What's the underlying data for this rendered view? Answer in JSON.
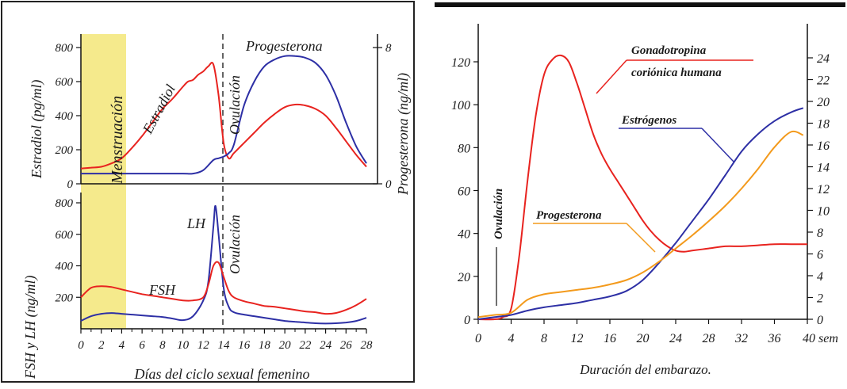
{
  "left_panel": {
    "top": {
      "yleft_label": "Estradiol (pg/ml)",
      "yleft_ticks": [
        "800",
        "600",
        "400",
        "200",
        "0"
      ],
      "yright_label": "Progesterona (ng/ml)",
      "yright_ticks": [
        "8",
        "0"
      ],
      "annotations": {
        "estradiol": "Estradiol",
        "progesterona": "Progesterona",
        "ovulacion": "Ovulación",
        "menstruacion": "Menstruación"
      }
    },
    "bottom": {
      "yleft_label": "FSH y LH (ng/ml)",
      "yleft_ticks": [
        "800",
        "600",
        "400",
        "200"
      ],
      "annotations": {
        "lh": "LH",
        "fsh": "FSH",
        "ovulacion": "Ovulación"
      }
    },
    "x_ticks": [
      "0",
      "2",
      "4",
      "6",
      "8",
      "10",
      "12",
      "14",
      "16",
      "18",
      "20",
      "22",
      "24",
      "26",
      "28"
    ],
    "x_label": "Días del ciclo sexual femenino"
  },
  "right_panel": {
    "yleft_ticks": [
      "120",
      "100",
      "80",
      "60",
      "40",
      "20",
      "0"
    ],
    "yright_ticks": [
      "24",
      "22",
      "20",
      "18",
      "16",
      "14",
      "12",
      "10",
      "8",
      "6",
      "4",
      "2",
      "0"
    ],
    "x_ticks": [
      "0",
      "4",
      "8",
      "12",
      "16",
      "20",
      "24",
      "28",
      "32",
      "36",
      "40 sem"
    ],
    "x_label": "Duración del embarazo.",
    "annotations": {
      "hcg_line1": "Gonadotropina",
      "hcg_line2": "coriónica humana",
      "estrogenos": "Estrógenos",
      "progesterona": "Progesterona",
      "ovulacion": "Ovulación"
    }
  },
  "colors": {
    "red": "#e8231f",
    "blue": "#2d2fa5",
    "orange": "#f39a1c",
    "menstruation_band": "#f5ea8c"
  },
  "chart_data": [
    {
      "type": "line",
      "xlabel": "Días del ciclo sexual femenino",
      "ylabel": "Estradiol (pg/ml)",
      "y2label": "Progesterona (ng/ml)",
      "xlim": [
        0,
        28
      ],
      "ylim": [
        0,
        800
      ],
      "y2lim": [
        0,
        8
      ],
      "series": [
        {
          "name": "Estradiol",
          "axis": "left",
          "x": [
            0,
            1,
            2,
            3,
            4,
            5,
            6,
            7,
            8,
            9,
            10,
            10.5,
            11,
            11.5,
            12,
            12.5,
            13,
            13.5,
            14,
            14.5,
            15,
            16,
            17,
            18,
            19,
            20,
            21,
            22,
            23,
            24,
            25,
            26,
            27,
            28
          ],
          "y": [
            90,
            95,
            100,
            120,
            150,
            210,
            280,
            360,
            440,
            500,
            570,
            600,
            610,
            640,
            660,
            690,
            700,
            520,
            240,
            150,
            180,
            240,
            300,
            360,
            410,
            450,
            465,
            460,
            440,
            400,
            330,
            250,
            170,
            100
          ]
        },
        {
          "name": "Progesterona",
          "axis": "right",
          "x": [
            0,
            2,
            4,
            6,
            8,
            10,
            11,
            12,
            13,
            13.5,
            14,
            14.5,
            15,
            16,
            17,
            18,
            19,
            20,
            21,
            22,
            23,
            24,
            25,
            26,
            27,
            28
          ],
          "y": [
            0.6,
            0.6,
            0.6,
            0.6,
            0.6,
            0.6,
            0.6,
            0.8,
            1.4,
            1.5,
            1.6,
            1.8,
            2.3,
            4.6,
            6.0,
            6.9,
            7.3,
            7.5,
            7.5,
            7.4,
            7.1,
            6.4,
            5.2,
            3.6,
            2.2,
            1.2
          ]
        }
      ]
    },
    {
      "type": "line",
      "xlabel": "Días del ciclo sexual femenino",
      "ylabel": "FSH y LH (ng/ml)",
      "xlim": [
        0,
        28
      ],
      "ylim": [
        0,
        800
      ],
      "series": [
        {
          "name": "LH",
          "x": [
            0,
            1,
            2,
            3,
            4,
            5,
            6,
            7,
            8,
            9,
            10,
            11,
            12,
            12.5,
            13,
            13.2,
            13.5,
            14,
            14.5,
            15,
            16,
            17,
            18,
            19,
            20,
            21,
            22,
            23,
            24,
            25,
            26,
            27,
            28
          ],
          "y": [
            50,
            80,
            95,
            100,
            95,
            90,
            85,
            80,
            75,
            65,
            55,
            80,
            180,
            300,
            650,
            780,
            600,
            260,
            140,
            105,
            90,
            80,
            70,
            60,
            50,
            45,
            40,
            35,
            33,
            35,
            40,
            50,
            70
          ]
        },
        {
          "name": "FSH",
          "x": [
            0,
            1,
            2,
            3,
            4,
            5,
            6,
            7,
            8,
            9,
            10,
            11,
            12,
            12.5,
            13,
            13.5,
            14,
            14.5,
            15,
            16,
            17,
            18,
            19,
            20,
            21,
            22,
            23,
            24,
            25,
            26,
            27,
            28
          ],
          "y": [
            200,
            260,
            270,
            265,
            250,
            235,
            220,
            210,
            200,
            190,
            180,
            180,
            200,
            280,
            400,
            420,
            330,
            240,
            200,
            175,
            160,
            145,
            140,
            130,
            120,
            110,
            105,
            95,
            100,
            120,
            150,
            190
          ]
        }
      ]
    },
    {
      "type": "line",
      "xlabel": "Duración del embarazo.",
      "xlim": [
        0,
        40
      ],
      "ylim": [
        0,
        120
      ],
      "y2lim": [
        0,
        24
      ],
      "series": [
        {
          "name": "Gonadotropina coriónica humana",
          "axis": "left",
          "x": [
            0,
            2,
            3,
            4,
            5,
            6,
            7,
            8,
            9,
            10,
            11,
            12,
            13,
            14,
            15,
            16,
            17,
            18,
            19,
            20,
            21,
            22,
            23,
            24,
            25,
            26,
            28,
            30,
            32,
            34,
            36,
            38,
            40
          ],
          "y": [
            0,
            0,
            1,
            5,
            30,
            65,
            95,
            114,
            121,
            123,
            120,
            110,
            98,
            86,
            77,
            70,
            64,
            58,
            52,
            46,
            41,
            37,
            34,
            32,
            31.5,
            32,
            33,
            34,
            34,
            34.5,
            35,
            35,
            35
          ]
        },
        {
          "name": "Estrógenos",
          "axis": "right",
          "x": [
            0,
            2,
            4,
            6,
            8,
            10,
            12,
            14,
            16,
            18,
            20,
            22,
            24,
            26,
            28,
            30,
            32,
            34,
            36,
            38,
            39.5
          ],
          "y": [
            0,
            0.2,
            0.4,
            0.8,
            1.1,
            1.3,
            1.5,
            1.8,
            2.1,
            2.6,
            3.6,
            5.2,
            7.0,
            9.0,
            11.0,
            13.2,
            15.4,
            17.0,
            18.2,
            19.0,
            19.4
          ]
        },
        {
          "name": "Progesterona",
          "axis": "right",
          "x": [
            0,
            2,
            4,
            6,
            8,
            10,
            12,
            14,
            16,
            18,
            20,
            22,
            24,
            26,
            28,
            30,
            32,
            34,
            36,
            38,
            39.5
          ],
          "y": [
            0.2,
            0.4,
            0.6,
            1.8,
            2.3,
            2.5,
            2.7,
            2.9,
            3.2,
            3.6,
            4.3,
            5.3,
            6.5,
            7.7,
            9.0,
            10.4,
            12.0,
            13.8,
            15.8,
            17.2,
            16.9
          ]
        }
      ]
    }
  ]
}
